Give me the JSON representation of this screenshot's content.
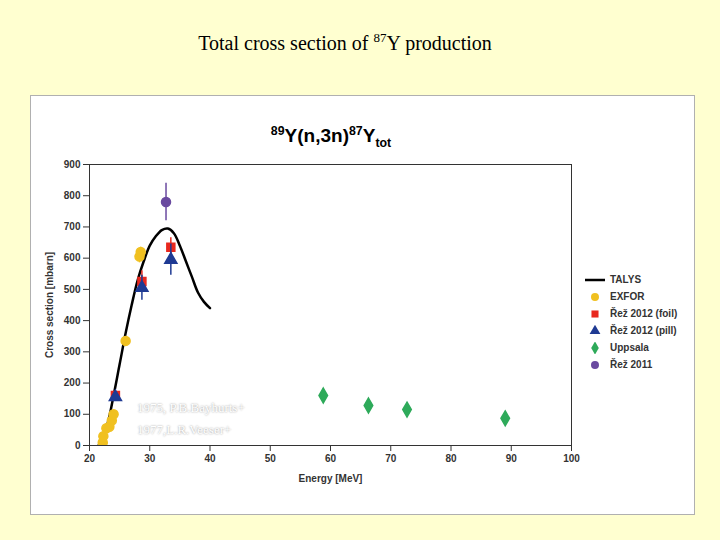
{
  "page_title": "Total cross section of 87Y production",
  "chart_data": {
    "type": "scatter",
    "title": "89Y(n,3n)87Ytot",
    "x_label": "Energy [MeV]",
    "y_label": "Cross section [mbarn]",
    "xlim": [
      20,
      100
    ],
    "xticks": [
      20,
      30,
      40,
      50,
      60,
      70,
      80,
      90,
      100
    ],
    "ylim": [
      0,
      900
    ],
    "yticks": [
      0,
      100,
      200,
      300,
      400,
      500,
      600,
      700,
      800,
      900
    ],
    "grid": false,
    "legend": "right",
    "annotations": [
      "1975, P.B.Bayhurts+",
      "1977,L.R.Veeser+"
    ],
    "series": [
      {
        "name": "TALYS",
        "type": "line",
        "color": "#000000",
        "marker": "none",
        "x": [
          21.5,
          22,
          23,
          24,
          25,
          26,
          27,
          28,
          29,
          30,
          31,
          32,
          33,
          34,
          35,
          36,
          37,
          38,
          39,
          40
        ],
        "values": [
          0,
          20,
          70,
          160,
          260,
          360,
          450,
          530,
          590,
          640,
          670,
          690,
          695,
          680,
          640,
          590,
          540,
          490,
          460,
          440
        ],
        "errors": [
          null,
          null,
          null,
          null,
          null,
          null,
          null,
          null,
          null,
          null,
          null,
          null,
          null,
          null,
          null,
          null,
          null,
          null,
          null,
          null
        ]
      },
      {
        "name": "EXFOR",
        "type": "scatter",
        "color": "#f0c020",
        "marker": "circle",
        "x": [
          22.2,
          22.3,
          22.8,
          23.3,
          23.7,
          24.0,
          26.0,
          28.3,
          28.5
        ],
        "values": [
          10,
          30,
          55,
          60,
          80,
          100,
          335,
          605,
          620
        ],
        "errors": [
          5,
          5,
          8,
          8,
          10,
          10,
          10,
          20,
          15
        ]
      },
      {
        "name": "Řež 2012 (foil)",
        "type": "scatter",
        "color": "#e8281e",
        "marker": "square",
        "x": [
          24.3,
          28.7,
          33.5
        ],
        "values": [
          160,
          525,
          635
        ],
        "errors": [
          10,
          35,
          30
        ]
      },
      {
        "name": "Řež 2012 (pill)",
        "type": "scatter",
        "color": "#1f3a93",
        "marker": "triangle",
        "x": [
          24.3,
          28.7,
          33.5
        ],
        "values": [
          155,
          505,
          595
        ],
        "errors": [
          10,
          40,
          50
        ]
      },
      {
        "name": "Uppsala",
        "type": "scatter",
        "color": "#2eaa5a",
        "marker": "diamond",
        "x": [
          58.8,
          66.3,
          72.7,
          89.0
        ],
        "values": [
          160,
          128,
          115,
          87
        ],
        "errors": [
          20,
          15,
          12,
          12
        ]
      },
      {
        "name": "Řež 2011",
        "type": "scatter",
        "color": "#6a4aa0",
        "marker": "circle",
        "x": [
          32.7
        ],
        "values": [
          780
        ],
        "errors": [
          60
        ]
      }
    ]
  }
}
